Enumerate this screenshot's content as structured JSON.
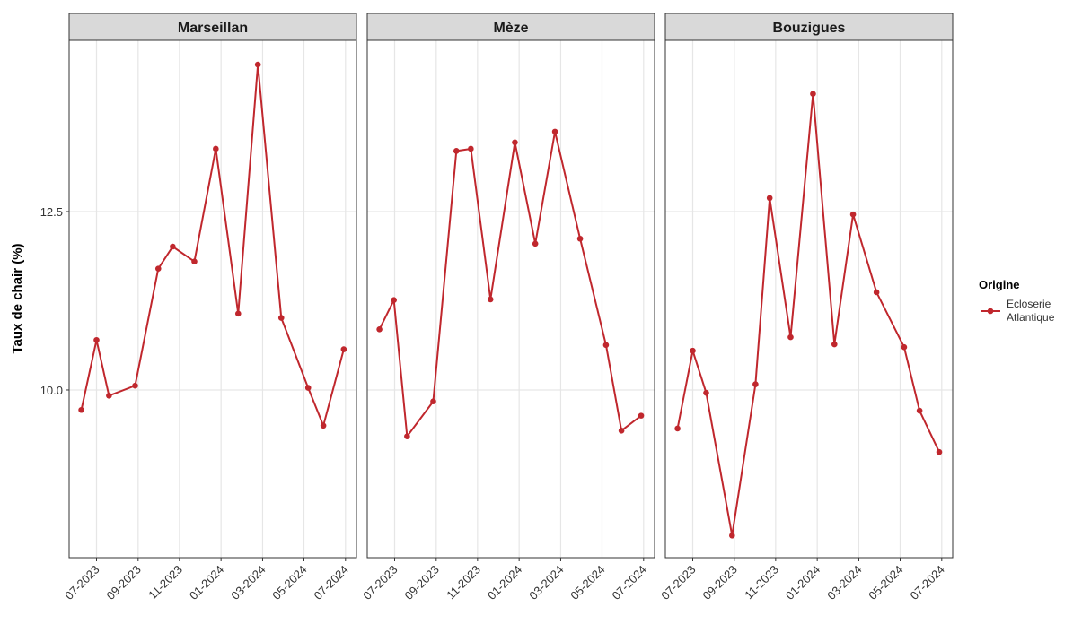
{
  "y_label": "Taux de chair (%)",
  "legend_title": "Origine",
  "chart_data": [
    {
      "type": "line",
      "title": "Marseillan",
      "x": [
        2023.439,
        2023.5,
        2023.55,
        2023.655,
        2023.748,
        2023.806,
        2023.893,
        2023.979,
        2024.069,
        2024.148,
        2024.242,
        2024.35,
        2024.411,
        2024.493
      ],
      "series": [
        {
          "name": "Ecloserie Atlantique",
          "color": "#c0272d",
          "values": [
            9.72,
            10.7,
            9.92,
            10.06,
            11.7,
            12.01,
            11.8,
            13.38,
            11.07,
            14.56,
            11.01,
            10.03,
            9.5,
            10.57
          ]
        }
      ],
      "xlim": [
        2023.39,
        2024.544
      ],
      "ylim": [
        7.65,
        14.9
      ],
      "xticks": [
        {
          "value": 2023.5,
          "label": "07-2023"
        },
        {
          "value": 2023.667,
          "label": "09-2023"
        },
        {
          "value": 2023.833,
          "label": "11-2023"
        },
        {
          "value": 2024.0,
          "label": "01-2024"
        },
        {
          "value": 2024.167,
          "label": "03-2024"
        },
        {
          "value": 2024.333,
          "label": "05-2024"
        },
        {
          "value": 2024.5,
          "label": "07-2024"
        }
      ],
      "yticks": [
        {
          "value": 10,
          "label": "10.0"
        },
        {
          "value": 12.5,
          "label": "12.5"
        }
      ],
      "grid": true
    },
    {
      "type": "line",
      "title": "Mèze",
      "x": [
        2023.439,
        2023.497,
        2023.55,
        2023.655,
        2023.748,
        2023.806,
        2023.885,
        2023.983,
        2024.065,
        2024.144,
        2024.245,
        2024.349,
        2024.411,
        2024.49
      ],
      "series": [
        {
          "name": "Ecloserie Atlantique",
          "color": "#c0272d",
          "values": [
            10.85,
            11.26,
            9.35,
            9.84,
            13.35,
            13.38,
            11.27,
            13.47,
            12.05,
            13.62,
            12.12,
            10.63,
            9.43,
            9.64
          ]
        }
      ],
      "xlim": [
        2023.39,
        2024.544
      ],
      "ylim": [
        7.65,
        14.9
      ],
      "xticks": [
        {
          "value": 2023.5,
          "label": "07-2023"
        },
        {
          "value": 2023.667,
          "label": "09-2023"
        },
        {
          "value": 2023.833,
          "label": "11-2023"
        },
        {
          "value": 2024.0,
          "label": "01-2024"
        },
        {
          "value": 2024.167,
          "label": "03-2024"
        },
        {
          "value": 2024.333,
          "label": "05-2024"
        },
        {
          "value": 2024.5,
          "label": "07-2024"
        }
      ],
      "yticks": [
        {
          "value": 10,
          "label": "10.0"
        },
        {
          "value": 12.5,
          "label": "12.5"
        }
      ],
      "grid": true
    },
    {
      "type": "line",
      "title": "Bouzigues",
      "x": [
        2023.439,
        2023.5,
        2023.554,
        2023.658,
        2023.752,
        2023.809,
        2023.893,
        2023.983,
        2024.069,
        2024.144,
        2024.238,
        2024.349,
        2024.411,
        2024.49
      ],
      "series": [
        {
          "name": "Ecloserie Atlantique",
          "color": "#c0272d",
          "values": [
            9.46,
            10.55,
            9.96,
            7.96,
            10.08,
            12.69,
            10.74,
            14.15,
            10.64,
            12.46,
            11.37,
            10.6,
            9.71,
            9.13
          ]
        }
      ],
      "xlim": [
        2023.39,
        2024.544
      ],
      "ylim": [
        7.65,
        14.9
      ],
      "xticks": [
        {
          "value": 2023.5,
          "label": "07-2023"
        },
        {
          "value": 2023.667,
          "label": "09-2023"
        },
        {
          "value": 2023.833,
          "label": "11-2023"
        },
        {
          "value": 2024.0,
          "label": "01-2024"
        },
        {
          "value": 2024.167,
          "label": "03-2024"
        },
        {
          "value": 2024.333,
          "label": "05-2024"
        },
        {
          "value": 2024.5,
          "label": "07-2024"
        }
      ],
      "yticks": [
        {
          "value": 10,
          "label": "10.0"
        },
        {
          "value": 12.5,
          "label": "12.5"
        }
      ],
      "grid": true
    }
  ]
}
